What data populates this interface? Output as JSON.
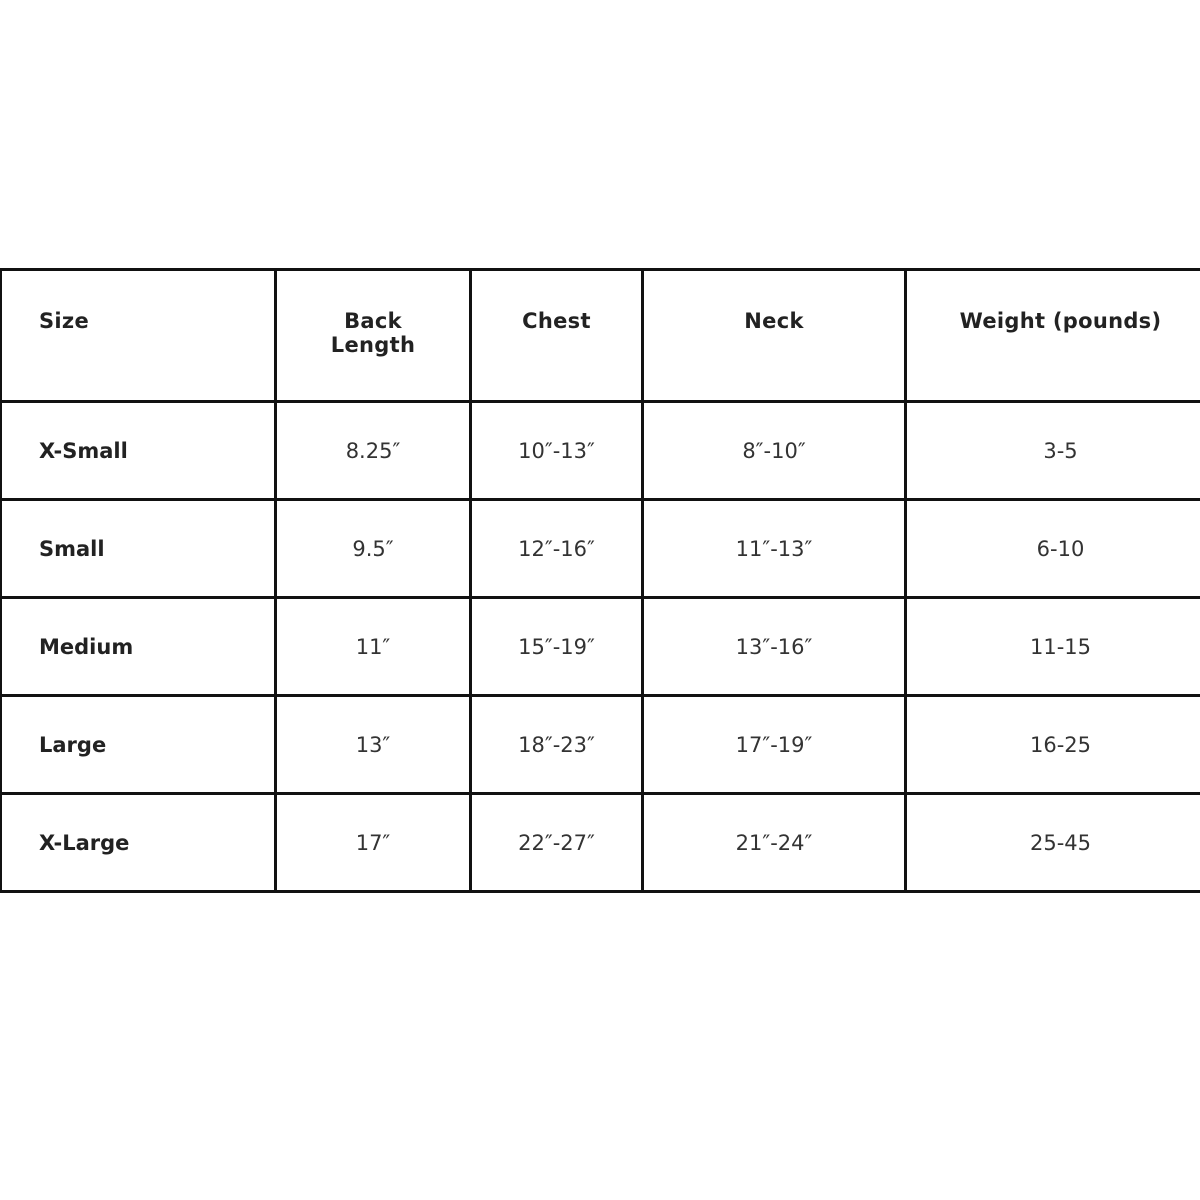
{
  "table": {
    "headers": [
      "Size",
      "Back Length",
      "Chest",
      "Neck",
      "Weight (pounds)"
    ],
    "rows": [
      [
        "X-Small",
        "8.25″",
        "10″-13″",
        "8″-10″",
        "3-5"
      ],
      [
        "Small",
        "9.5″",
        "12″-16″",
        "11″-13″",
        "6-10"
      ],
      [
        "Medium",
        "11″",
        "15″-19″",
        "13″-16″",
        "11-15"
      ],
      [
        "Large",
        "13″",
        "18″-23″",
        "17″-19″",
        "16-25"
      ],
      [
        "X-Large",
        "17″",
        "22″-27″",
        "21″-24″",
        "25-45"
      ]
    ]
  }
}
